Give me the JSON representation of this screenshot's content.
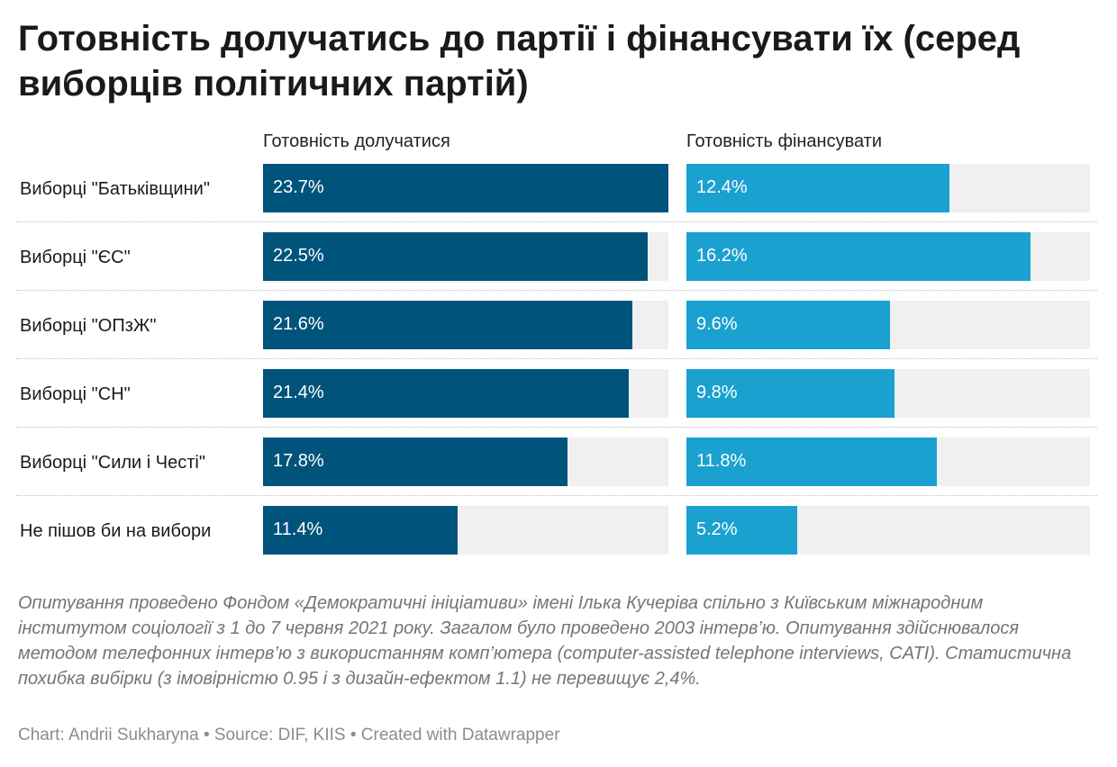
{
  "title": "Готовність долучатись до партії і фінансувати їх (серед виборців політичних партій)",
  "chart_data": {
    "type": "bar",
    "orientation": "horizontal",
    "title": "Готовність долучатись до партії і фінансувати їх (серед виборців політичних партій)",
    "categories": [
      "Виборці \"Батьківщини\"",
      "Виборці \"ЄС\"",
      "Виборці \"ОПзЖ\"",
      "Виборці \"СН\"",
      "Виборці \"Сили і Честі\"",
      "Не пішов би на вибори"
    ],
    "series": [
      {
        "name": "Готовність долучатися",
        "color": "#00547c",
        "values": [
          23.7,
          22.5,
          21.6,
          21.4,
          17.8,
          11.4
        ],
        "labels": [
          "23.7%",
          "22.5%",
          "21.6%",
          "21.4%",
          "17.8%",
          "11.4%"
        ],
        "max": 23.7
      },
      {
        "name": "Готовність фінансувати",
        "color": "#1aa1d0",
        "values": [
          12.4,
          16.2,
          9.6,
          9.8,
          11.8,
          5.2
        ],
        "labels": [
          "12.4%",
          "16.2%",
          "9.6%",
          "9.8%",
          "11.8%",
          "5.2%"
        ],
        "max": 19.0
      }
    ],
    "grid": false,
    "legend": "column headers above panels"
  },
  "note": "Опитування проведено Фондом «Демократичні ініціативи» імені Ілька Кучеріва спільно з Київським міжнародним інститутом соціології з 1 до 7 червня 2021 року. Загалом було проведено 2003 інтерв’ю. Опитування здійснювалося методом телефонних інтерв’ю з використанням комп’ютера (computer-assisted telephone interviews, CATI). Статистична похибка вибірки (з імовірністю 0.95 і з дизайн-ефектом 1.1) не перевищує 2,4%.",
  "credits": "Chart: Andrii Sukharyna • Source: DIF, KIIS • Created with Datawrapper"
}
